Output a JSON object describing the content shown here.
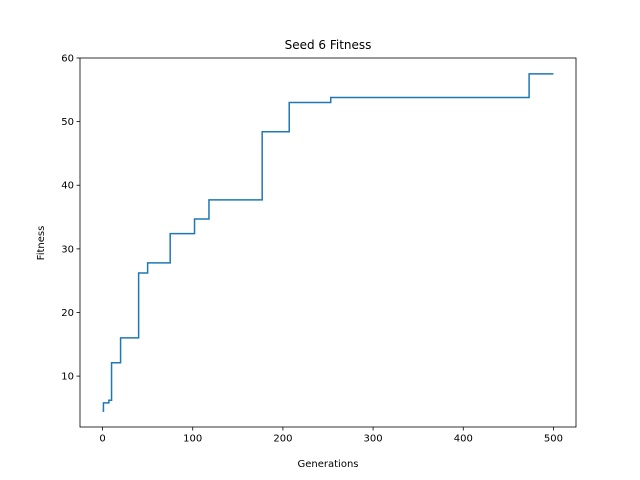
{
  "chart_data": {
    "type": "line",
    "title": "Seed 6 Fitness",
    "xlabel": "Generations",
    "ylabel": "Fitness",
    "xlim": [
      -25,
      525
    ],
    "ylim": [
      2,
      60
    ],
    "xticks": [
      0,
      100,
      200,
      300,
      400,
      500
    ],
    "yticks": [
      10,
      20,
      30,
      40,
      50,
      60
    ],
    "grid": false,
    "series": [
      {
        "color": "#1f77b4",
        "x": [
          0,
          1,
          1,
          7,
          7,
          10,
          10,
          20,
          20,
          40,
          40,
          50,
          50,
          75,
          75,
          102,
          102,
          118,
          118,
          177,
          177,
          207,
          207,
          253,
          253,
          473,
          473,
          500
        ],
        "y": [
          4.5,
          4.5,
          5.8,
          5.8,
          6.2,
          6.2,
          12.1,
          12.1,
          16.0,
          16.0,
          26.2,
          26.2,
          27.8,
          27.8,
          32.4,
          32.4,
          34.7,
          34.7,
          37.7,
          37.7,
          48.4,
          48.4,
          53.0,
          53.0,
          53.8,
          53.8,
          57.5,
          57.5
        ]
      }
    ]
  }
}
